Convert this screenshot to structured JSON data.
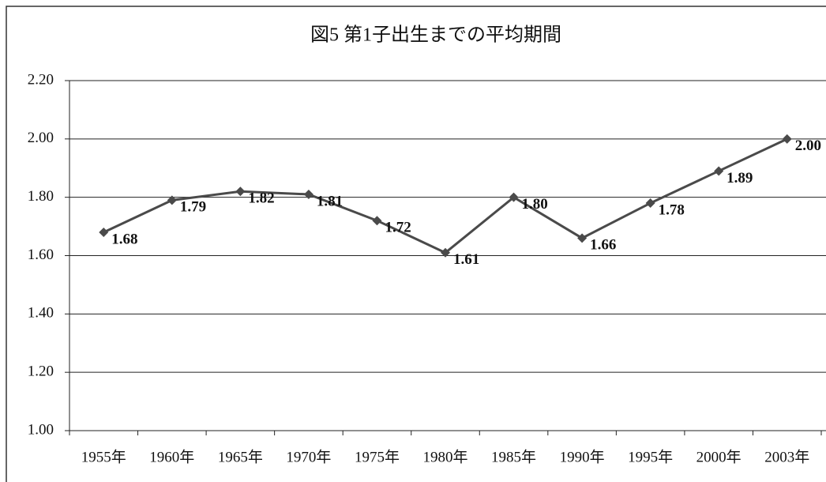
{
  "chart_data": {
    "type": "line",
    "title": "図5 第1子出生までの平均期間",
    "categories": [
      "1955年",
      "1960年",
      "1965年",
      "1970年",
      "1975年",
      "1980年",
      "1985年",
      "1990年",
      "1995年",
      "2000年",
      "2003年"
    ],
    "values": [
      1.68,
      1.79,
      1.82,
      1.81,
      1.72,
      1.61,
      1.8,
      1.66,
      1.78,
      1.89,
      2.0
    ],
    "value_labels": [
      "1.68",
      "1.79",
      "1.82",
      "1.81",
      "1.72",
      "1.61",
      "1.80",
      "1.66",
      "1.78",
      "1.89",
      "2.00"
    ],
    "color": "#4a4a4a",
    "ylim": [
      1.0,
      2.2
    ],
    "yticks": [
      {
        "value": 1.0,
        "label": "1.00"
      },
      {
        "value": 1.2,
        "label": "1.20"
      },
      {
        "value": 1.4,
        "label": "1.40"
      },
      {
        "value": 1.6,
        "label": "1.60"
      },
      {
        "value": 1.8,
        "label": "1.80"
      },
      {
        "value": 2.0,
        "label": "2.00"
      },
      {
        "value": 2.2,
        "label": "2.20"
      }
    ],
    "grid": true
  }
}
